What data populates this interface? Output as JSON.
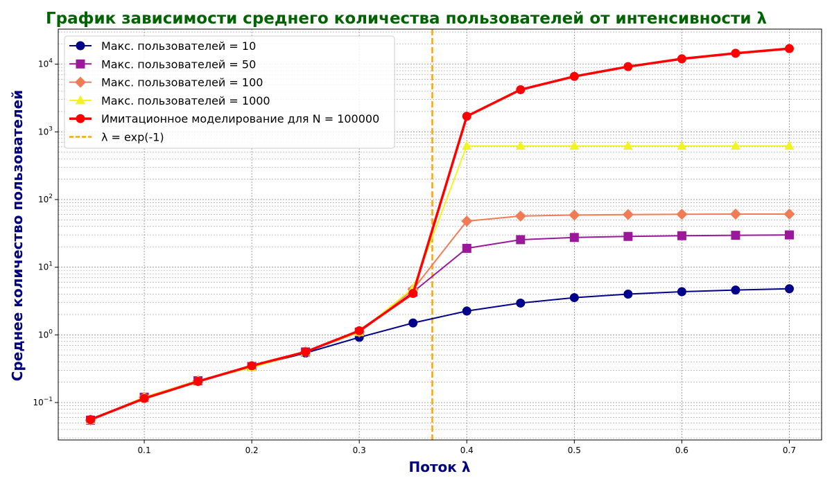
{
  "chart_data": {
    "type": "line",
    "title": "График зависимости среднего количества пользователей от интенсивности λ",
    "xlabel": "Поток λ",
    "ylabel": "Среднее количество пользователей",
    "title_color": "#006400",
    "label_color": "#000080",
    "xlim": [
      0.02,
      0.73
    ],
    "ylim": [
      0.028,
      33000
    ],
    "y_scale": "log",
    "grid": true,
    "legend_position": "top-left",
    "x_ticks": [
      0.1,
      0.2,
      0.3,
      0.4,
      0.5,
      0.6,
      0.7
    ],
    "x_tick_labels": [
      "0.1",
      "0.2",
      "0.3",
      "0.4",
      "0.5",
      "0.6",
      "0.7"
    ],
    "y_ticks": [
      0.1,
      1,
      10,
      100,
      1000,
      10000
    ],
    "y_tick_labels": [
      {
        "base": "10",
        "exp": "−1"
      },
      {
        "base": "10",
        "exp": "0"
      },
      {
        "base": "10",
        "exp": "1"
      },
      {
        "base": "10",
        "exp": "2"
      },
      {
        "base": "10",
        "exp": "3"
      },
      {
        "base": "10",
        "exp": "4"
      }
    ],
    "x": [
      0.05,
      0.1,
      0.15,
      0.2,
      0.25,
      0.3,
      0.35,
      0.4,
      0.45,
      0.5,
      0.55,
      0.6,
      0.65,
      0.7
    ],
    "series": [
      {
        "name": "Макс. пользователей = 10",
        "color": "#00008b",
        "marker": "circle",
        "width": 2,
        "values": [
          0.055,
          0.12,
          0.21,
          0.34,
          0.54,
          0.92,
          1.5,
          2.25,
          2.95,
          3.55,
          4.0,
          4.35,
          4.6,
          4.8
        ]
      },
      {
        "name": "Макс. пользователей = 50",
        "color": "#9b189b",
        "marker": "square",
        "width": 2,
        "values": [
          0.055,
          0.12,
          0.21,
          0.34,
          0.56,
          1.1,
          4.3,
          19,
          25.5,
          27.5,
          28.5,
          29.2,
          29.6,
          30
        ]
      },
      {
        "name": "Макс. пользователей = 100",
        "color": "#f07b55",
        "marker": "diamond",
        "width": 2,
        "values": [
          0.055,
          0.12,
          0.21,
          0.34,
          0.56,
          1.1,
          4.7,
          48,
          57,
          59,
          60,
          60.5,
          61,
          61
        ]
      },
      {
        "name": "Макс. пользователей = 1000",
        "color": "#f3f321",
        "marker": "triangle",
        "width": 2,
        "values": [
          0.055,
          0.12,
          0.21,
          0.33,
          0.56,
          1.1,
          4.9,
          620,
          620,
          620,
          620,
          620,
          620,
          620
        ]
      },
      {
        "name": "Имитационное моделирование для N = 100000",
        "color": "#ff0000",
        "marker": "circle",
        "width": 3.5,
        "values": [
          0.056,
          0.115,
          0.205,
          0.35,
          0.56,
          1.15,
          4.1,
          1700,
          4200,
          6600,
          9200,
          12000,
          14500,
          17000
        ]
      }
    ],
    "vline": {
      "x": 0.3679,
      "label": "λ = exp(-1)",
      "color": "#ffa500"
    }
  }
}
